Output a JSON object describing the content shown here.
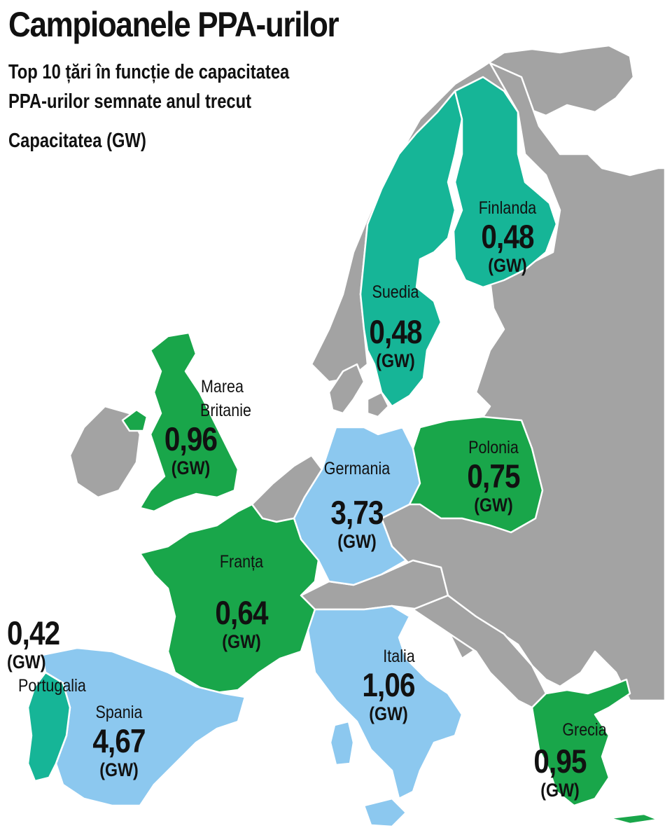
{
  "title": "Campioanele PPA-urilor",
  "subtitle_lines": [
    "Top 10 țări în funcție de capacitatea",
    "PPA-urilor semnate anul trecut"
  ],
  "unit_label": "Capacitatea (GW)",
  "colors": {
    "grey_land": "#a3a3a3",
    "light_blue": "#8cc8ef",
    "teal": "#16b597",
    "green": "#19a64a",
    "border": "#ffffff"
  },
  "countries": [
    {
      "id": "finlanda",
      "name": "Finlanda",
      "value": "0,48",
      "unit": "(GW)",
      "color": "teal"
    },
    {
      "id": "suedia",
      "name": "Suedia",
      "value": "0,48",
      "unit": "(GW)",
      "color": "teal"
    },
    {
      "id": "marea-britanie",
      "name_lines": [
        "Marea",
        "Britanie"
      ],
      "value": "0,96",
      "unit": "(GW)",
      "color": "green"
    },
    {
      "id": "germania",
      "name": "Germania",
      "value": "3,73",
      "unit": "(GW)",
      "color": "light_blue"
    },
    {
      "id": "polonia",
      "name": "Polonia",
      "value": "0,75",
      "unit": "(GW)",
      "color": "green"
    },
    {
      "id": "franta",
      "name": "Franța",
      "value": "0,64",
      "unit": "(GW)",
      "color": "green"
    },
    {
      "id": "portugalia",
      "name": "Portugalia",
      "value": "0,42",
      "unit": "(GW)",
      "color": "teal"
    },
    {
      "id": "spania",
      "name": "Spania",
      "value": "4,67",
      "unit": "(GW)",
      "color": "light_blue"
    },
    {
      "id": "italia",
      "name": "Italia",
      "value": "1,06",
      "unit": "(GW)",
      "color": "light_blue"
    },
    {
      "id": "grecia",
      "name": "Grecia",
      "value": "0,95",
      "unit": "(GW)",
      "color": "green"
    }
  ]
}
